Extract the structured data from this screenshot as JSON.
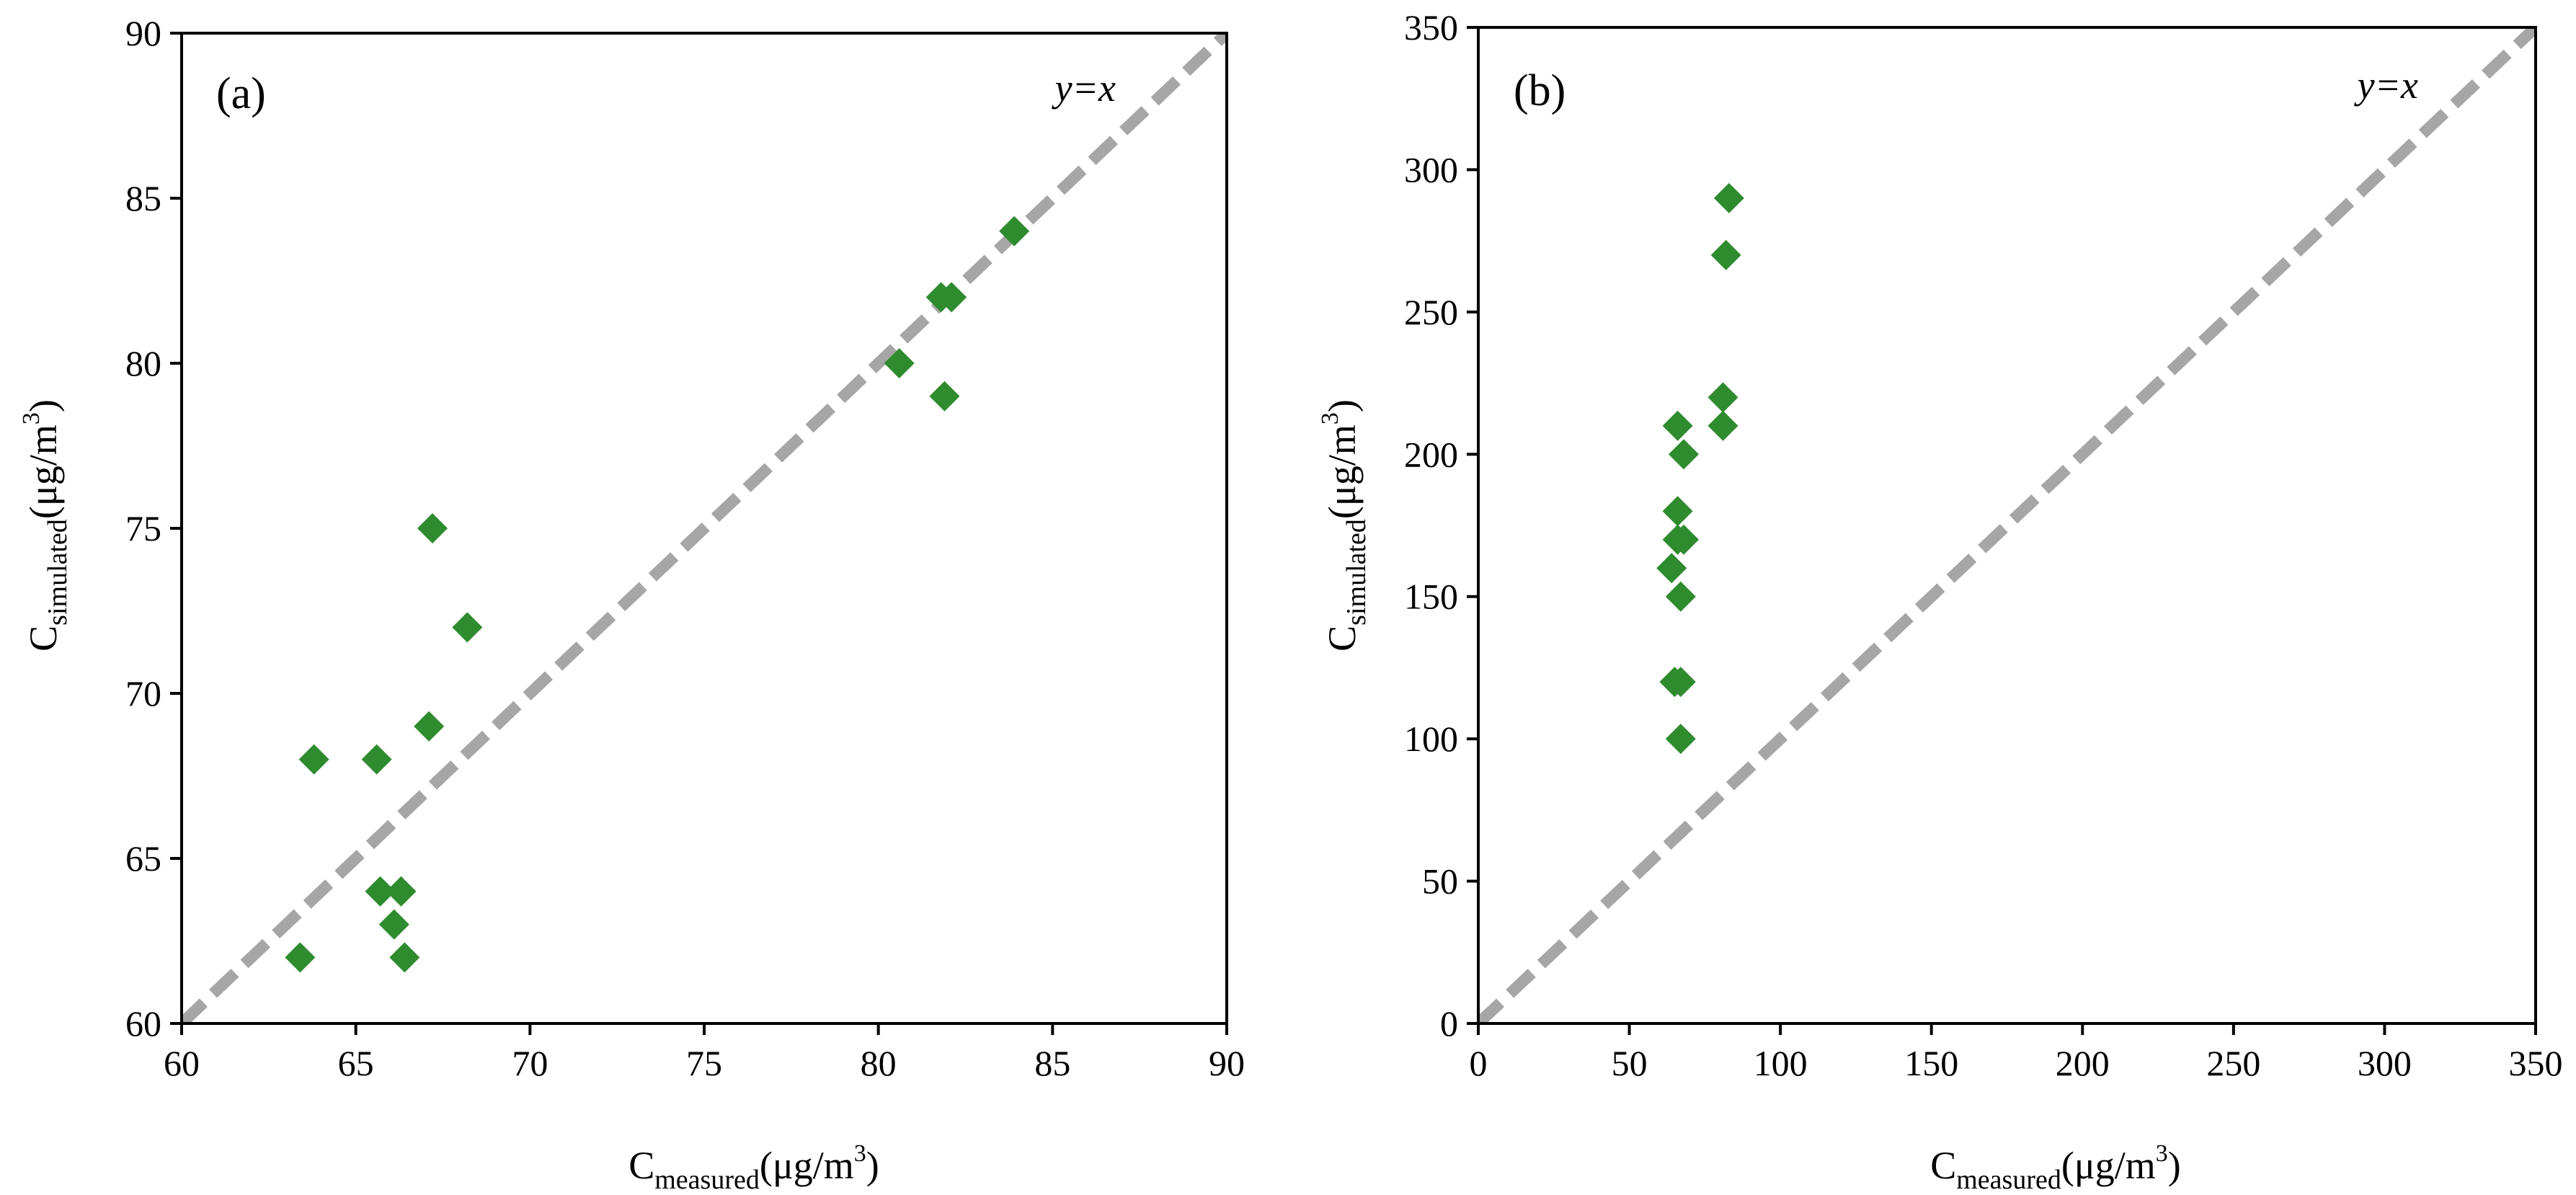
{
  "chart_data": [
    {
      "type": "scatter",
      "panel_label": "(a)",
      "annotation": "y=x",
      "xlabel": {
        "main": "C",
        "subscript": "measured",
        "unit_pre": "(μg/m",
        "unit_sup": "3",
        "unit_post": ")"
      },
      "ylabel": {
        "main": "C",
        "subscript": "simulated",
        "unit_pre": "(μg/m",
        "unit_sup": "3",
        "unit_post": ")"
      },
      "xlim": [
        60,
        90
      ],
      "ylim": [
        60,
        90
      ],
      "xticks": [
        60,
        65,
        70,
        75,
        80,
        85,
        90
      ],
      "yticks": [
        60,
        65,
        70,
        75,
        80,
        85,
        90
      ],
      "grid": false,
      "reference_line": {
        "type": "y=x",
        "color": "#a6a6a6",
        "style": "dashed"
      },
      "marker": {
        "shape": "diamond",
        "color": "#2e8b2e"
      },
      "points": [
        {
          "x": 63.4,
          "y": 62.0
        },
        {
          "x": 63.8,
          "y": 68.0
        },
        {
          "x": 65.6,
          "y": 68.0
        },
        {
          "x": 65.7,
          "y": 64.0
        },
        {
          "x": 66.1,
          "y": 63.0
        },
        {
          "x": 66.3,
          "y": 64.0
        },
        {
          "x": 66.4,
          "y": 62.0
        },
        {
          "x": 67.1,
          "y": 69.0
        },
        {
          "x": 67.2,
          "y": 75.0
        },
        {
          "x": 68.2,
          "y": 72.0
        },
        {
          "x": 80.6,
          "y": 80.0
        },
        {
          "x": 81.8,
          "y": 82.0
        },
        {
          "x": 81.9,
          "y": 79.0
        },
        {
          "x": 82.1,
          "y": 82.0
        },
        {
          "x": 83.9,
          "y": 84.0
        }
      ]
    },
    {
      "type": "scatter",
      "panel_label": "(b)",
      "annotation": "y=x",
      "xlabel": {
        "main": "C",
        "subscript": "measured",
        "unit_pre": "(μg/m",
        "unit_sup": "3",
        "unit_post": ")"
      },
      "ylabel": {
        "main": "C",
        "subscript": "simulated",
        "unit_pre": "(μg/m",
        "unit_sup": "3",
        "unit_post": ")"
      },
      "xlim": [
        0,
        350
      ],
      "ylim": [
        0,
        350
      ],
      "xticks": [
        0,
        50,
        100,
        150,
        200,
        250,
        300,
        350
      ],
      "yticks": [
        0,
        50,
        100,
        150,
        200,
        250,
        300,
        350
      ],
      "grid": false,
      "reference_line": {
        "type": "y=x",
        "color": "#a6a6a6",
        "style": "dashed"
      },
      "marker": {
        "shape": "diamond",
        "color": "#2e8b2e"
      },
      "points": [
        {
          "x": 64,
          "y": 160
        },
        {
          "x": 65,
          "y": 120
        },
        {
          "x": 66,
          "y": 210
        },
        {
          "x": 66,
          "y": 180
        },
        {
          "x": 66,
          "y": 170
        },
        {
          "x": 67,
          "y": 100
        },
        {
          "x": 67,
          "y": 120
        },
        {
          "x": 67,
          "y": 150
        },
        {
          "x": 68,
          "y": 200
        },
        {
          "x": 68,
          "y": 170
        },
        {
          "x": 81,
          "y": 220
        },
        {
          "x": 81,
          "y": 210
        },
        {
          "x": 82,
          "y": 270
        },
        {
          "x": 83,
          "y": 290
        }
      ]
    }
  ]
}
